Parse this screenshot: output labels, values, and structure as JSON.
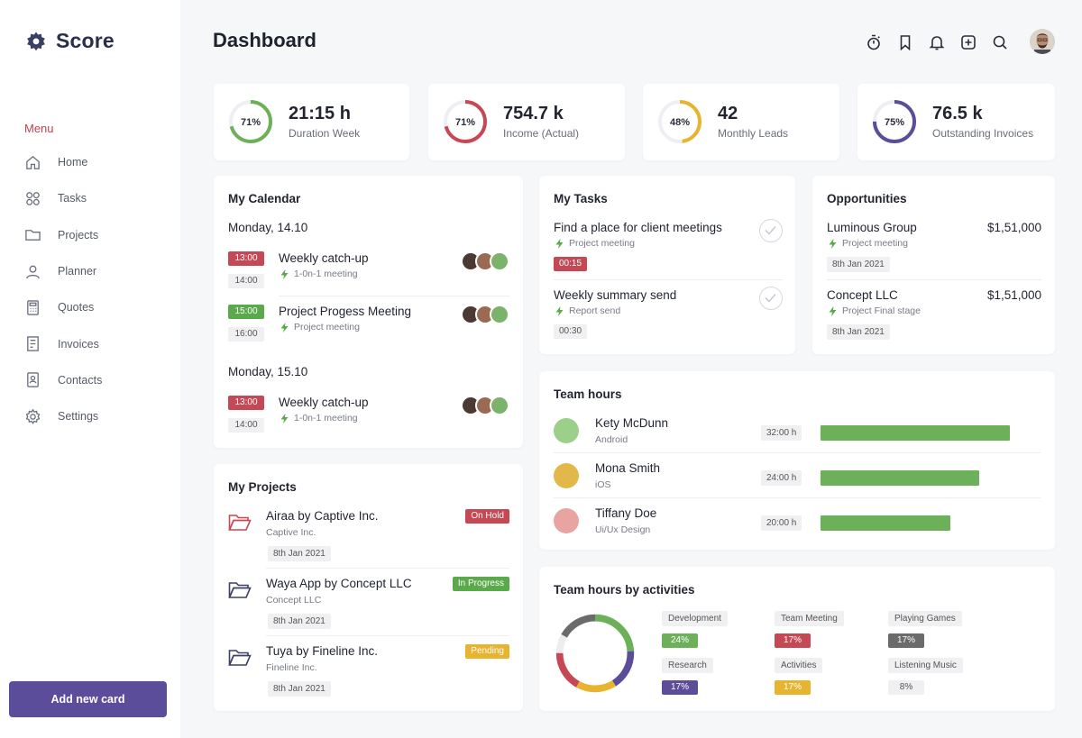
{
  "app": {
    "name": "Score"
  },
  "sidebar": {
    "menu_label": "Menu",
    "items": [
      {
        "label": "Home",
        "icon": "home-icon"
      },
      {
        "label": "Tasks",
        "icon": "grid-icon"
      },
      {
        "label": "Projects",
        "icon": "folder-icon"
      },
      {
        "label": "Planner",
        "icon": "user-icon"
      },
      {
        "label": "Quotes",
        "icon": "calculator-icon"
      },
      {
        "label": "Invoices",
        "icon": "invoice-icon"
      },
      {
        "label": "Contacts",
        "icon": "contacts-icon"
      },
      {
        "label": "Settings",
        "icon": "gear-icon"
      }
    ],
    "add_button": "Add new card"
  },
  "header": {
    "title": "Dashboard",
    "icons": [
      "timer-icon",
      "bookmark-icon",
      "bell-icon",
      "plus-square-icon",
      "search-icon"
    ]
  },
  "stats": [
    {
      "percent": "71%",
      "fraction": 0.71,
      "value": "21:15 h",
      "label": "Duration Week",
      "color": "#6cb15a"
    },
    {
      "percent": "71%",
      "fraction": 0.71,
      "value": "754.7 k",
      "label": "Income (Actual)",
      "color": "#c74855"
    },
    {
      "percent": "48%",
      "fraction": 0.48,
      "value": "42",
      "label": "Monthly Leads",
      "color": "#e8b32f"
    },
    {
      "percent": "75%",
      "fraction": 0.75,
      "value": "76.5 k",
      "label": "Outstanding Invoices",
      "color": "#5b4d9a"
    }
  ],
  "calendar": {
    "title": "My Calendar",
    "days": [
      {
        "label": "Monday, 14.10",
        "events": [
          {
            "start": "13:00",
            "end": "14:00",
            "title": "Weekly catch-up",
            "sub": "1-0n-1 meeting",
            "color": "red"
          },
          {
            "start": "15:00",
            "end": "16:00",
            "title": "Project Progess Meeting",
            "sub": "Project meeting",
            "color": "green"
          }
        ]
      },
      {
        "label": "Monday, 15.10",
        "events": [
          {
            "start": "13:00",
            "end": "14:00",
            "title": "Weekly catch-up",
            "sub": "1-0n-1 meeting",
            "color": "red"
          }
        ]
      }
    ]
  },
  "projects": {
    "title": "My Projects",
    "items": [
      {
        "name": "Airaa by Captive Inc.",
        "company": "Captive Inc.",
        "date": "8th Jan 2021",
        "status": "On Hold",
        "status_color": "#c74855",
        "folder_color": "#c74855"
      },
      {
        "name": "Waya App by Concept LLC",
        "company": "Concept LLC",
        "date": "8th Jan 2021",
        "status": "In Progress",
        "status_color": "#5aa94a",
        "folder_color": "#3d4166"
      },
      {
        "name": "Tuya by Fineline Inc.",
        "company": "Fineline Inc.",
        "date": "8th Jan 2021",
        "status": "Pending",
        "status_color": "#e8b32f",
        "folder_color": "#3d4166"
      }
    ]
  },
  "tasks": {
    "title": "My Tasks",
    "items": [
      {
        "title": "Find a place for client meetings",
        "sub": "Project meeting",
        "time": "00:15",
        "badge_style": "red"
      },
      {
        "title": "Weekly summary send",
        "sub": "Report send",
        "time": "00:30",
        "badge_style": "grey"
      }
    ]
  },
  "opportunities": {
    "title": "Opportunities",
    "items": [
      {
        "name": "Luminous Group",
        "amount": "$1,51,000",
        "sub": "Project meeting",
        "date": "8th Jan 2021"
      },
      {
        "name": "Concept LLC",
        "amount": "$1,51,000",
        "sub": "Project Final stage",
        "date": "8th Jan 2021"
      }
    ]
  },
  "team_hours": {
    "title": "Team hours",
    "members": [
      {
        "name": "Kety McDunn",
        "role": "Android",
        "hours": "32:00 h",
        "fraction": 0.86
      },
      {
        "name": "Mona Smith",
        "role": "iOS",
        "hours": "24:00 h",
        "fraction": 0.72
      },
      {
        "name": "Tiffany Doe",
        "role": "Ui/Ux Design",
        "hours": "20:00 h",
        "fraction": 0.59
      }
    ]
  },
  "activities": {
    "title": "Team hours by activities",
    "items": [
      {
        "name": "Development",
        "percent": "24%",
        "color": "#6cb15a"
      },
      {
        "name": "Team Meeting",
        "percent": "17%",
        "color": "#c74855"
      },
      {
        "name": "Playing Games",
        "percent": "17%",
        "color": "#6b6b6b"
      },
      {
        "name": "Research",
        "percent": "17%",
        "color": "#5b4d9a"
      },
      {
        "name": "Activities",
        "percent": "17%",
        "color": "#e8b32f"
      },
      {
        "name": "Listening Music",
        "percent": "8%",
        "color": "#f0f0f2"
      }
    ]
  }
}
